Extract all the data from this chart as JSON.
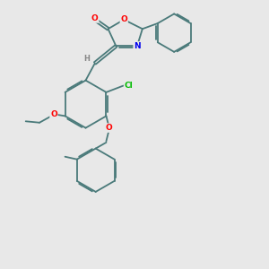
{
  "bg_color": "#e8e8e8",
  "bond_color": "#4a7a7a",
  "atom_colors": {
    "O": "#ff0000",
    "N": "#0000ee",
    "Cl": "#00bb00",
    "H": "#888888",
    "C": "#4a7a7a"
  }
}
